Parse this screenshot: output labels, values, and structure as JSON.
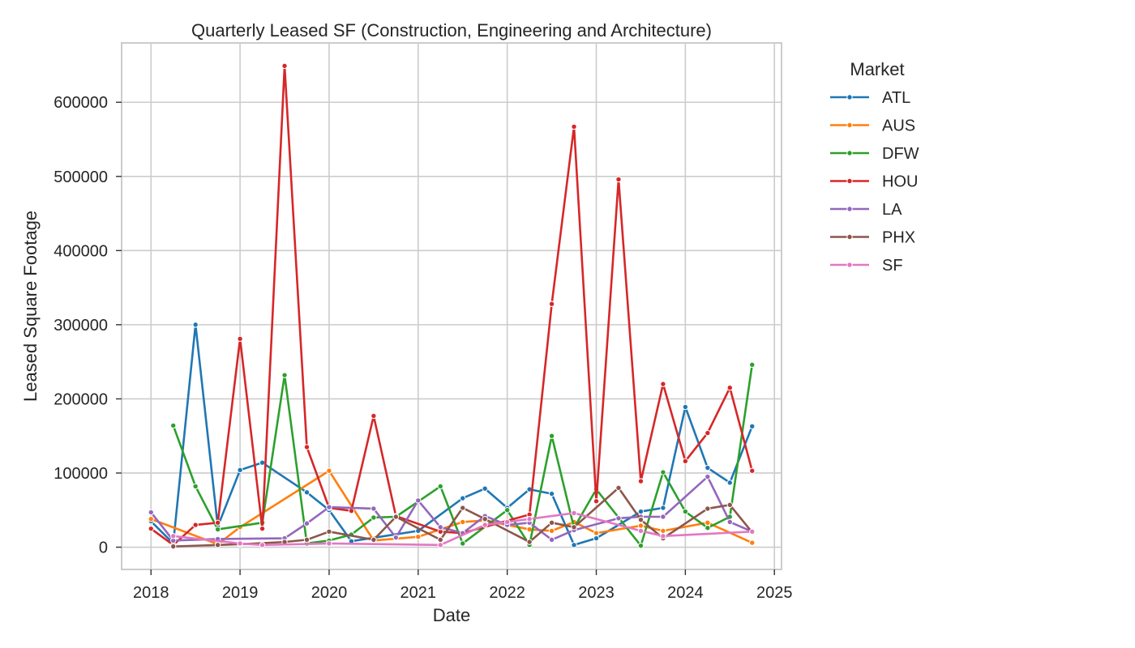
{
  "chart_data": {
    "type": "line",
    "title": "Quarterly Leased SF (Construction, Engineering and Architecture)",
    "xlabel": "Date",
    "ylabel": "Leased Square Footage",
    "xlim": [
      2017.67,
      2025.08
    ],
    "ylim": [
      -30000,
      680000
    ],
    "x_ticks": [
      "2018",
      "2019",
      "2020",
      "2021",
      "2022",
      "2023",
      "2024",
      "2025"
    ],
    "y_ticks": [
      "0",
      "100000",
      "200000",
      "300000",
      "400000",
      "500000",
      "600000"
    ],
    "grid": true,
    "legend": {
      "title": "Market",
      "placement": "outside-top-right"
    },
    "series": [
      {
        "name": "ATL",
        "color": "#1f77b4",
        "points": [
          [
            "2018-Q1",
            35000
          ],
          [
            "2018-Q2",
            5000
          ],
          [
            "2018-Q3",
            300000
          ],
          [
            "2018-Q4",
            28000
          ],
          [
            "2019-Q1",
            104000
          ],
          [
            "2019-Q2",
            114000
          ],
          [
            "2019-Q4",
            74000
          ],
          [
            "2020-Q1",
            50000
          ],
          [
            "2020-Q2",
            8000
          ],
          [
            "2021-Q1",
            22000
          ],
          [
            "2021-Q3",
            66000
          ],
          [
            "2021-Q4",
            79000
          ],
          [
            "2022-Q1",
            53000
          ],
          [
            "2022-Q2",
            78000
          ],
          [
            "2022-Q3",
            72000
          ],
          [
            "2022-Q4",
            3000
          ],
          [
            "2023-Q1",
            12000
          ],
          [
            "2023-Q3",
            48000
          ],
          [
            "2023-Q4",
            53000
          ],
          [
            "2024-Q1",
            189000
          ],
          [
            "2024-Q2",
            107000
          ],
          [
            "2024-Q3",
            87000
          ],
          [
            "2024-Q4",
            163000
          ]
        ]
      },
      {
        "name": "AUS",
        "color": "#ff7f0e",
        "points": [
          [
            "2018-Q1",
            38000
          ],
          [
            "2018-Q4",
            4000
          ],
          [
            "2019-Q1",
            27000
          ],
          [
            "2020-Q1",
            103000
          ],
          [
            "2020-Q3",
            9000
          ],
          [
            "2021-Q1",
            14000
          ],
          [
            "2021-Q3",
            34000
          ],
          [
            "2021-Q4",
            36000
          ],
          [
            "2022-Q2",
            24000
          ],
          [
            "2022-Q3",
            22000
          ],
          [
            "2022-Q4",
            34000
          ],
          [
            "2023-Q1",
            19000
          ],
          [
            "2023-Q3",
            29000
          ],
          [
            "2023-Q4",
            22000
          ],
          [
            "2024-Q2",
            33000
          ],
          [
            "2024-Q4",
            6000
          ]
        ]
      },
      {
        "name": "DFW",
        "color": "#2ca02c",
        "points": [
          [
            "2018-Q2",
            164000
          ],
          [
            "2018-Q3",
            82000
          ],
          [
            "2018-Q4",
            24000
          ],
          [
            "2019-Q2",
            33000
          ],
          [
            "2019-Q3",
            232000
          ],
          [
            "2019-Q4",
            5000
          ],
          [
            "2020-Q1",
            9000
          ],
          [
            "2020-Q2",
            17000
          ],
          [
            "2020-Q3",
            40000
          ],
          [
            "2020-Q4",
            41000
          ],
          [
            "2021-Q2",
            82000
          ],
          [
            "2021-Q3",
            5000
          ],
          [
            "2022-Q1",
            50000
          ],
          [
            "2022-Q2",
            3000
          ],
          [
            "2022-Q3",
            150000
          ],
          [
            "2022-Q4",
            26000
          ],
          [
            "2023-Q1",
            78000
          ],
          [
            "2023-Q3",
            2000
          ],
          [
            "2023-Q4",
            101000
          ],
          [
            "2024-Q1",
            48000
          ],
          [
            "2024-Q2",
            26000
          ],
          [
            "2024-Q3",
            41000
          ],
          [
            "2024-Q4",
            246000
          ]
        ]
      },
      {
        "name": "HOU",
        "color": "#d62728",
        "points": [
          [
            "2018-Q1",
            25000
          ],
          [
            "2018-Q2",
            3000
          ],
          [
            "2018-Q3",
            30000
          ],
          [
            "2018-Q4",
            33000
          ],
          [
            "2019-Q1",
            281000
          ],
          [
            "2019-Q2",
            25000
          ],
          [
            "2019-Q3",
            649000
          ],
          [
            "2019-Q4",
            135000
          ],
          [
            "2020-Q1",
            53000
          ],
          [
            "2020-Q2",
            49000
          ],
          [
            "2020-Q3",
            177000
          ],
          [
            "2020-Q4",
            42000
          ],
          [
            "2021-Q2",
            21000
          ],
          [
            "2021-Q3",
            19000
          ],
          [
            "2022-Q2",
            44000
          ],
          [
            "2022-Q3",
            328000
          ],
          [
            "2022-Q4",
            567000
          ],
          [
            "2023-Q1",
            62000
          ],
          [
            "2023-Q2",
            496000
          ],
          [
            "2023-Q3",
            89000
          ],
          [
            "2023-Q4",
            220000
          ],
          [
            "2024-Q1",
            116000
          ],
          [
            "2024-Q2",
            154000
          ],
          [
            "2024-Q3",
            215000
          ],
          [
            "2024-Q4",
            103000
          ]
        ]
      },
      {
        "name": "LA",
        "color": "#9467bd",
        "points": [
          [
            "2018-Q1",
            47000
          ],
          [
            "2018-Q2",
            9000
          ],
          [
            "2018-Q4",
            11000
          ],
          [
            "2019-Q3",
            12000
          ],
          [
            "2019-Q4",
            32000
          ],
          [
            "2020-Q1",
            54000
          ],
          [
            "2020-Q3",
            52000
          ],
          [
            "2020-Q4",
            13000
          ],
          [
            "2021-Q1",
            63000
          ],
          [
            "2021-Q2",
            27000
          ],
          [
            "2021-Q3",
            19000
          ],
          [
            "2021-Q4",
            42000
          ],
          [
            "2022-Q1",
            30000
          ],
          [
            "2022-Q2",
            33000
          ],
          [
            "2022-Q3",
            10000
          ],
          [
            "2022-Q4",
            23000
          ],
          [
            "2023-Q2",
            39000
          ],
          [
            "2023-Q3",
            41000
          ],
          [
            "2023-Q4",
            41000
          ],
          [
            "2024-Q2",
            95000
          ],
          [
            "2024-Q3",
            34000
          ],
          [
            "2024-Q4",
            21000
          ]
        ]
      },
      {
        "name": "PHX",
        "color": "#8c564b",
        "points": [
          [
            "2018-Q2",
            1000
          ],
          [
            "2018-Q4",
            3000
          ],
          [
            "2019-Q1",
            4000
          ],
          [
            "2019-Q3",
            7000
          ],
          [
            "2019-Q4",
            10000
          ],
          [
            "2020-Q1",
            21000
          ],
          [
            "2020-Q3",
            10000
          ],
          [
            "2020-Q4",
            41000
          ],
          [
            "2021-Q2",
            10000
          ],
          [
            "2021-Q3",
            53000
          ],
          [
            "2021-Q4",
            38000
          ],
          [
            "2022-Q2",
            7000
          ],
          [
            "2022-Q3",
            33000
          ],
          [
            "2022-Q4",
            27000
          ],
          [
            "2023-Q2",
            80000
          ],
          [
            "2023-Q3",
            37000
          ],
          [
            "2023-Q4",
            12000
          ],
          [
            "2024-Q2",
            52000
          ],
          [
            "2024-Q3",
            57000
          ],
          [
            "2024-Q4",
            20000
          ]
        ]
      },
      {
        "name": "SF",
        "color": "#e377c2",
        "points": [
          [
            "2018-Q2",
            15000
          ],
          [
            "2019-Q1",
            5000
          ],
          [
            "2019-Q2",
            3000
          ],
          [
            "2020-Q1",
            5000
          ],
          [
            "2021-Q2",
            3000
          ],
          [
            "2021-Q4",
            30000
          ],
          [
            "2022-Q1",
            34000
          ],
          [
            "2022-Q2",
            38000
          ],
          [
            "2022-Q4",
            46000
          ],
          [
            "2023-Q3",
            22000
          ],
          [
            "2023-Q4",
            15000
          ],
          [
            "2024-Q4",
            21000
          ]
        ]
      }
    ]
  }
}
